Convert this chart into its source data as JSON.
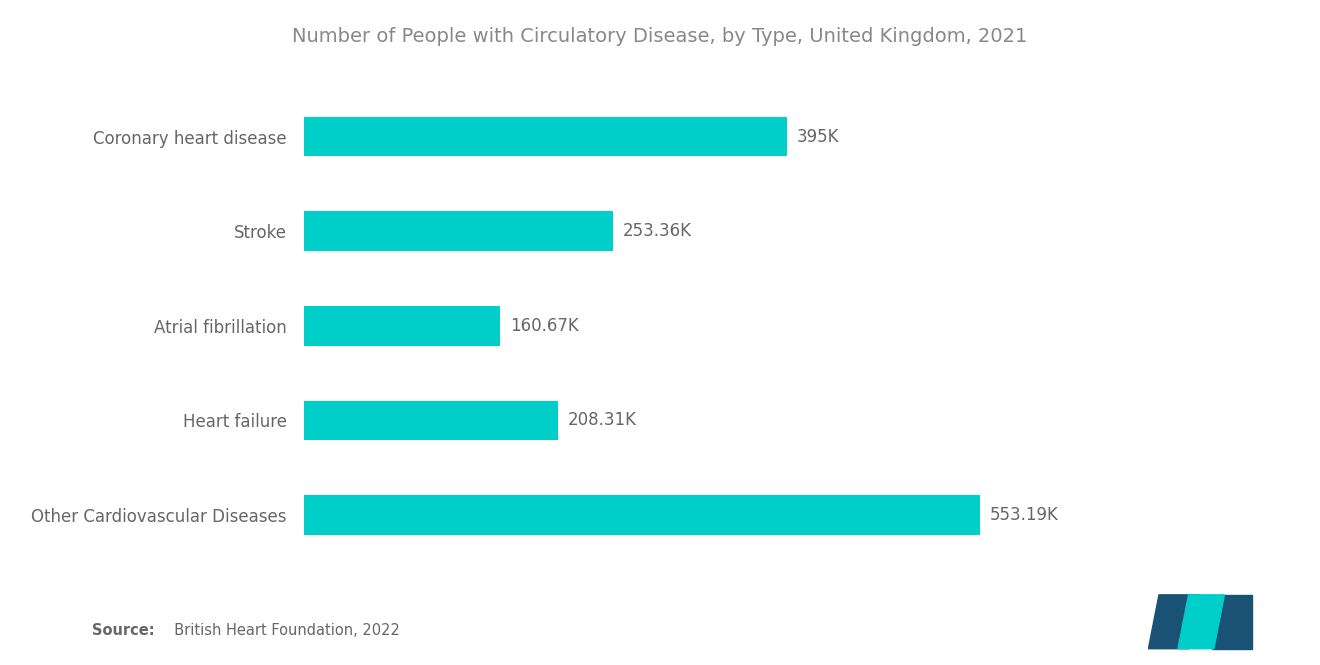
{
  "title": "Number of People with Circulatory Disease, by Type, United Kingdom, 2021",
  "categories": [
    "Coronary heart disease",
    "Stroke",
    "Atrial fibrillation",
    "Heart failure",
    "Other Cardiovascular Diseases"
  ],
  "values": [
    395,
    253.36,
    160.67,
    208.31,
    553.19
  ],
  "labels": [
    "395K",
    "253.36K",
    "160.67K",
    "208.31K",
    "553.19K"
  ],
  "bar_color": "#00CEC9",
  "background_color": "#ffffff",
  "title_color": "#888888",
  "label_color": "#666666",
  "category_color": "#666666",
  "source_bold": "Source:",
  "source_rest": "  British Heart Foundation, 2022",
  "xlim": [
    0,
    680
  ],
  "bar_height": 0.42
}
